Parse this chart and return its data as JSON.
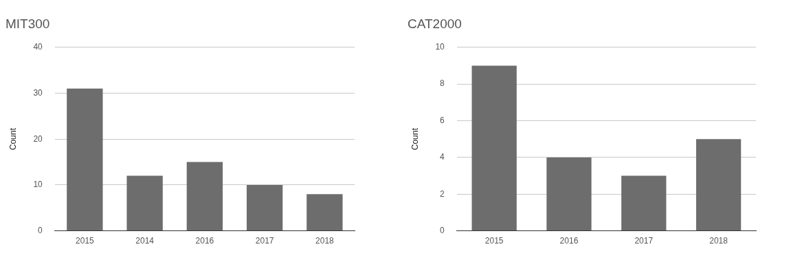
{
  "chart_data": [
    {
      "type": "bar",
      "title": "MIT300",
      "ylabel": "Count",
      "categories": [
        "2015",
        "2014",
        "2016",
        "2017",
        "2018"
      ],
      "values": [
        31,
        12,
        15,
        10,
        8
      ],
      "color": "#6d6d6d",
      "ylim": [
        0,
        40
      ],
      "yticks": [
        0,
        10,
        20,
        30,
        40
      ],
      "grid": "y"
    },
    {
      "type": "bar",
      "title": "CAT2000",
      "ylabel": "Count",
      "categories": [
        "2015",
        "2016",
        "2017",
        "2018"
      ],
      "values": [
        9,
        4,
        3,
        5
      ],
      "color": "#6d6d6d",
      "ylim": [
        0,
        10
      ],
      "yticks": [
        0,
        2,
        4,
        6,
        8,
        10
      ],
      "grid": "y"
    }
  ]
}
